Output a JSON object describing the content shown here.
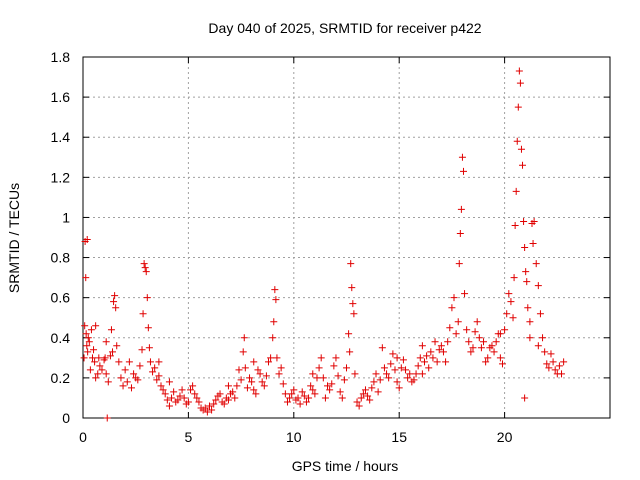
{
  "chart_data": {
    "type": "scatter",
    "title": "Day 040 of 2025, SRMTID for receiver p422",
    "xlabel": "GPS time / hours",
    "ylabel": "SRMTID / TECUs",
    "xlim": [
      0,
      25
    ],
    "ylim": [
      0,
      1.8
    ],
    "xticks": [
      0,
      5,
      10,
      15,
      20
    ],
    "xtick_labels": [
      "0",
      "5",
      "10",
      "15",
      "20"
    ],
    "yticks": [
      0,
      0.2,
      0.4,
      0.6,
      0.8,
      1.0,
      1.2,
      1.4,
      1.6,
      1.8
    ],
    "ytick_labels": [
      "0",
      "0.2",
      "0.4",
      "0.6",
      "0.8",
      "1",
      "1.2",
      "1.4",
      "1.6",
      "1.8"
    ],
    "grid": true,
    "marker": "+",
    "marker_color": "#e00000",
    "series": [
      {
        "name": "SRMTID",
        "points": [
          [
            0.05,
            0.3
          ],
          [
            0.08,
            0.46
          ],
          [
            0.1,
            0.88
          ],
          [
            0.13,
            0.7
          ],
          [
            0.15,
            0.42
          ],
          [
            0.18,
            0.36
          ],
          [
            0.2,
            0.89
          ],
          [
            0.22,
            0.33
          ],
          [
            0.25,
            0.4
          ],
          [
            0.3,
            0.38
          ],
          [
            0.35,
            0.24
          ],
          [
            0.4,
            0.44
          ],
          [
            0.45,
            0.3
          ],
          [
            0.5,
            0.34
          ],
          [
            0.55,
            0.28
          ],
          [
            0.6,
            0.2
          ],
          [
            0.7,
            0.22
          ],
          [
            0.75,
            0.3
          ],
          [
            0.8,
            0.26
          ],
          [
            0.9,
            0.24
          ],
          [
            1.0,
            0.29
          ],
          [
            1.05,
            0.3
          ],
          [
            1.1,
            0.22
          ],
          [
            1.15,
            0.0
          ],
          [
            1.2,
            0.18
          ],
          [
            1.3,
            0.31
          ],
          [
            1.35,
            0.44
          ],
          [
            1.4,
            0.33
          ],
          [
            1.45,
            0.58
          ],
          [
            1.5,
            0.61
          ],
          [
            1.55,
            0.55
          ],
          [
            1.6,
            0.36
          ],
          [
            1.7,
            0.28
          ],
          [
            1.8,
            0.2
          ],
          [
            1.9,
            0.16
          ],
          [
            2.0,
            0.24
          ],
          [
            2.1,
            0.18
          ],
          [
            2.2,
            0.28
          ],
          [
            2.3,
            0.15
          ],
          [
            2.4,
            0.22
          ],
          [
            2.5,
            0.2
          ],
          [
            2.6,
            0.19
          ],
          [
            2.7,
            0.26
          ],
          [
            2.8,
            0.34
          ],
          [
            2.85,
            0.52
          ],
          [
            2.9,
            0.77
          ],
          [
            2.95,
            0.75
          ],
          [
            3.0,
            0.73
          ],
          [
            3.05,
            0.6
          ],
          [
            3.1,
            0.45
          ],
          [
            3.15,
            0.35
          ],
          [
            3.2,
            0.28
          ],
          [
            3.3,
            0.23
          ],
          [
            3.4,
            0.25
          ],
          [
            3.5,
            0.19
          ],
          [
            3.6,
            0.21
          ],
          [
            3.7,
            0.16
          ],
          [
            3.8,
            0.14
          ],
          [
            3.9,
            0.12
          ],
          [
            4.0,
            0.09
          ],
          [
            4.1,
            0.06
          ],
          [
            4.2,
            0.1
          ],
          [
            4.3,
            0.13
          ],
          [
            4.4,
            0.08
          ],
          [
            4.5,
            0.09
          ],
          [
            4.6,
            0.11
          ],
          [
            4.7,
            0.14
          ],
          [
            4.8,
            0.1
          ],
          [
            4.9,
            0.07
          ],
          [
            5.0,
            0.08
          ],
          [
            5.1,
            0.14
          ],
          [
            5.2,
            0.16
          ],
          [
            5.3,
            0.12
          ],
          [
            5.4,
            0.1
          ],
          [
            5.5,
            0.08
          ],
          [
            5.6,
            0.05
          ],
          [
            5.7,
            0.04
          ],
          [
            5.8,
            0.05
          ],
          [
            5.9,
            0.03
          ],
          [
            6.0,
            0.06
          ],
          [
            6.1,
            0.04
          ],
          [
            6.2,
            0.07
          ],
          [
            6.3,
            0.09
          ],
          [
            6.4,
            0.11
          ],
          [
            6.5,
            0.12
          ],
          [
            6.6,
            0.08
          ],
          [
            6.7,
            0.07
          ],
          [
            6.8,
            0.1
          ],
          [
            6.9,
            0.09
          ],
          [
            7.0,
            0.12
          ],
          [
            7.1,
            0.13
          ],
          [
            7.2,
            0.1
          ],
          [
            7.3,
            0.16
          ],
          [
            7.4,
            0.24
          ],
          [
            7.5,
            0.19
          ],
          [
            7.6,
            0.33
          ],
          [
            7.65,
            0.4
          ],
          [
            7.7,
            0.25
          ],
          [
            7.8,
            0.15
          ],
          [
            7.9,
            0.2
          ],
          [
            8.0,
            0.18
          ],
          [
            8.1,
            0.14
          ],
          [
            8.2,
            0.12
          ],
          [
            8.3,
            0.24
          ],
          [
            8.4,
            0.22
          ],
          [
            8.5,
            0.18
          ],
          [
            8.6,
            0.16
          ],
          [
            8.7,
            0.21
          ],
          [
            8.8,
            0.28
          ],
          [
            8.9,
            0.3
          ],
          [
            9.0,
            0.4
          ],
          [
            9.05,
            0.48
          ],
          [
            9.1,
            0.64
          ],
          [
            9.15,
            0.59
          ],
          [
            9.2,
            0.3
          ],
          [
            9.3,
            0.22
          ],
          [
            9.4,
            0.25
          ],
          [
            9.5,
            0.17
          ],
          [
            9.6,
            0.12
          ],
          [
            9.7,
            0.08
          ],
          [
            9.8,
            0.1
          ],
          [
            9.9,
            0.12
          ],
          [
            10.0,
            0.14
          ],
          [
            10.1,
            0.09
          ],
          [
            10.2,
            0.1
          ],
          [
            10.3,
            0.07
          ],
          [
            10.4,
            0.13
          ],
          [
            10.5,
            0.11
          ],
          [
            10.6,
            0.08
          ],
          [
            10.7,
            0.1
          ],
          [
            10.8,
            0.16
          ],
          [
            10.9,
            0.14
          ],
          [
            11.0,
            0.12
          ],
          [
            11.1,
            0.2
          ],
          [
            11.2,
            0.25
          ],
          [
            11.3,
            0.3
          ],
          [
            11.4,
            0.2
          ],
          [
            11.5,
            0.1
          ],
          [
            11.6,
            0.16
          ],
          [
            11.7,
            0.14
          ],
          [
            11.8,
            0.17
          ],
          [
            11.9,
            0.26
          ],
          [
            12.0,
            0.3
          ],
          [
            12.1,
            0.21
          ],
          [
            12.2,
            0.13
          ],
          [
            12.3,
            0.1
          ],
          [
            12.4,
            0.19
          ],
          [
            12.5,
            0.25
          ],
          [
            12.6,
            0.42
          ],
          [
            12.65,
            0.33
          ],
          [
            12.7,
            0.77
          ],
          [
            12.75,
            0.65
          ],
          [
            12.8,
            0.57
          ],
          [
            12.85,
            0.52
          ],
          [
            12.9,
            0.22
          ],
          [
            13.0,
            0.08
          ],
          [
            13.1,
            0.06
          ],
          [
            13.2,
            0.1
          ],
          [
            13.3,
            0.12
          ],
          [
            13.4,
            0.14
          ],
          [
            13.5,
            0.11
          ],
          [
            13.6,
            0.09
          ],
          [
            13.7,
            0.15
          ],
          [
            13.8,
            0.18
          ],
          [
            13.9,
            0.22
          ],
          [
            14.0,
            0.13
          ],
          [
            14.1,
            0.19
          ],
          [
            14.2,
            0.35
          ],
          [
            14.3,
            0.25
          ],
          [
            14.4,
            0.22
          ],
          [
            14.5,
            0.2
          ],
          [
            14.6,
            0.27
          ],
          [
            14.7,
            0.32
          ],
          [
            14.8,
            0.24
          ],
          [
            14.9,
            0.18
          ],
          [
            15.0,
            0.15
          ],
          [
            15.1,
            0.25
          ],
          [
            15.2,
            0.29
          ],
          [
            15.3,
            0.24
          ],
          [
            15.4,
            0.2
          ],
          [
            15.5,
            0.22
          ],
          [
            15.6,
            0.18
          ],
          [
            15.7,
            0.19
          ],
          [
            15.8,
            0.22
          ],
          [
            15.9,
            0.26
          ],
          [
            16.0,
            0.3
          ],
          [
            16.1,
            0.36
          ],
          [
            16.2,
            0.28
          ],
          [
            16.3,
            0.31
          ],
          [
            16.4,
            0.25
          ],
          [
            16.5,
            0.33
          ],
          [
            16.6,
            0.3
          ],
          [
            16.7,
            0.38
          ],
          [
            16.8,
            0.28
          ],
          [
            16.9,
            0.34
          ],
          [
            17.0,
            0.36
          ],
          [
            17.1,
            0.33
          ],
          [
            17.2,
            0.28
          ],
          [
            17.3,
            0.38
          ],
          [
            17.4,
            0.45
          ],
          [
            17.5,
            0.55
          ],
          [
            17.6,
            0.6
          ],
          [
            17.7,
            0.42
          ],
          [
            17.8,
            0.48
          ],
          [
            17.85,
            0.77
          ],
          [
            17.9,
            0.92
          ],
          [
            17.95,
            1.04
          ],
          [
            18.0,
            1.3
          ],
          [
            18.05,
            1.23
          ],
          [
            18.1,
            0.62
          ],
          [
            18.2,
            0.44
          ],
          [
            18.3,
            0.38
          ],
          [
            18.4,
            0.33
          ],
          [
            18.5,
            0.35
          ],
          [
            18.6,
            0.43
          ],
          [
            18.7,
            0.48
          ],
          [
            18.8,
            0.4
          ],
          [
            18.9,
            0.35
          ],
          [
            19.0,
            0.38
          ],
          [
            19.1,
            0.28
          ],
          [
            19.2,
            0.3
          ],
          [
            19.3,
            0.35
          ],
          [
            19.4,
            0.36
          ],
          [
            19.5,
            0.33
          ],
          [
            19.6,
            0.38
          ],
          [
            19.7,
            0.42
          ],
          [
            19.8,
            0.3
          ],
          [
            19.9,
            0.27
          ],
          [
            20.0,
            0.44
          ],
          [
            20.1,
            0.52
          ],
          [
            20.2,
            0.62
          ],
          [
            20.3,
            0.58
          ],
          [
            20.4,
            0.5
          ],
          [
            20.45,
            0.7
          ],
          [
            20.5,
            0.96
          ],
          [
            20.55,
            1.13
          ],
          [
            20.6,
            1.38
          ],
          [
            20.65,
            1.55
          ],
          [
            20.7,
            1.73
          ],
          [
            20.75,
            1.67
          ],
          [
            20.8,
            1.34
          ],
          [
            20.85,
            1.26
          ],
          [
            20.9,
            0.98
          ],
          [
            20.95,
            0.85
          ],
          [
            21.0,
            0.73
          ],
          [
            21.05,
            0.68
          ],
          [
            21.1,
            0.55
          ],
          [
            21.2,
            0.4
          ],
          [
            21.3,
            0.97
          ],
          [
            21.35,
            0.87
          ],
          [
            21.4,
            0.98
          ],
          [
            21.5,
            0.77
          ],
          [
            21.6,
            0.66
          ],
          [
            21.7,
            0.52
          ],
          [
            21.8,
            0.4
          ],
          [
            21.9,
            0.33
          ],
          [
            22.0,
            0.27
          ],
          [
            22.1,
            0.25
          ],
          [
            22.2,
            0.32
          ],
          [
            22.3,
            0.28
          ],
          [
            22.4,
            0.24
          ],
          [
            22.5,
            0.22
          ],
          [
            22.6,
            0.26
          ],
          [
            22.7,
            0.22
          ],
          [
            22.8,
            0.28
          ],
          [
            20.95,
            0.1
          ],
          [
            21.2,
            0.48
          ],
          [
            21.6,
            0.36
          ],
          [
            19.8,
            0.42
          ],
          [
            16.1,
            0.22
          ],
          [
            14.9,
            0.3
          ],
          [
            10.9,
            0.22
          ],
          [
            8.1,
            0.28
          ],
          [
            6.9,
            0.16
          ],
          [
            4.1,
            0.18
          ],
          [
            3.6,
            0.28
          ],
          [
            1.1,
            0.38
          ],
          [
            0.6,
            0.46
          ]
        ]
      }
    ]
  }
}
